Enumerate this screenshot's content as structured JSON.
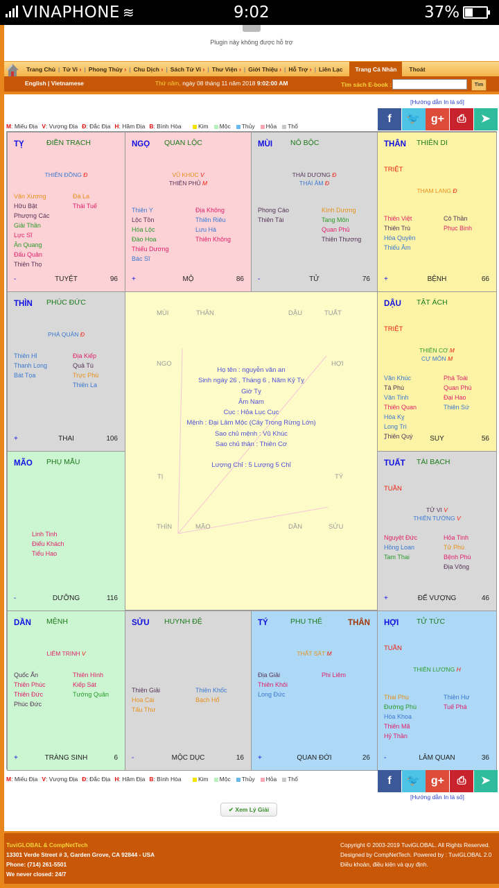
{
  "status_bar": {
    "carrier": "VINAPHONE",
    "time": "9:02",
    "battery": "37%"
  },
  "plugin": {
    "message": "Plugin này không được hỗ trợ"
  },
  "nav": {
    "items": [
      {
        "label": "Trang Chủ",
        "arrow": false
      },
      {
        "label": "Tử Vi",
        "arrow": true
      },
      {
        "label": "Phong Thủy",
        "arrow": true
      },
      {
        "label": "Chu Dịch",
        "arrow": true
      },
      {
        "label": "Sách Tử Vi",
        "arrow": true
      },
      {
        "label": "Thư Viện",
        "arrow": true
      },
      {
        "label": "Giới Thiệu",
        "arrow": true
      },
      {
        "label": "Hỗ Trợ",
        "arrow": true
      },
      {
        "label": "Liên Lạc",
        "arrow": false
      }
    ],
    "active": "Trang Cá Nhân",
    "logout": "Thoát",
    "arrow_glyph": "›"
  },
  "subnav": {
    "lang": "English | Vietnamese",
    "day_name": "Thứ năm,",
    "date": " ngày 08 tháng 11 năm 2018 ",
    "time": "9:02:00 AM",
    "search_label": "Tìm sách E-book :",
    "search_value": "",
    "search_button": "Tìm"
  },
  "guide_link": "[Hướng dẫn In lá số]",
  "legend": {
    "abbrs": [
      {
        "k": "M",
        "v": ": Miếu Địa"
      },
      {
        "k": "V",
        "v": ": Vượng Địa"
      },
      {
        "k": "Đ",
        "v": ": Đắc Địa"
      },
      {
        "k": "H",
        "v": ": Hãm Địa"
      },
      {
        "k": "B",
        "v": ": Bình Hòa"
      }
    ],
    "elements": [
      {
        "name": "Kim",
        "color": "#f5e300"
      },
      {
        "name": "Mộc",
        "color": "#b8f0c0"
      },
      {
        "name": "Thủy",
        "color": "#6ab8f0"
      },
      {
        "name": "Hỏa",
        "color": "#f5a8b4"
      },
      {
        "name": "Thổ",
        "color": "#c8c8c8"
      }
    ]
  },
  "social": [
    {
      "name": "facebook",
      "glyph": "f",
      "color": "#3b5998"
    },
    {
      "name": "twitter",
      "glyph": "🐦",
      "color": "#4fc3e6"
    },
    {
      "name": "google-plus",
      "glyph": "g+",
      "color": "#dd4b39"
    },
    {
      "name": "print",
      "glyph": "⎙",
      "color": "#c8232c"
    },
    {
      "name": "send",
      "glyph": "➤",
      "color": "#2ebc9c"
    }
  ],
  "palaces": [
    {
      "chi": "TỴ",
      "cung": "ĐIỀN TRẠCH",
      "bg": "pink",
      "main": [
        {
          "name": "THIÊN ĐỒNG",
          "q": "Đ",
          "color": "#3a78d0"
        }
      ],
      "tt": "",
      "left": [
        [
          "Văn Xương",
          "#e8901a"
        ],
        [
          "Hữu Bật",
          "#553355"
        ],
        [
          "Phượng Các",
          "#553355"
        ],
        [
          "Giải Thần",
          "#2a9a2a"
        ],
        [
          "Lực Sĩ",
          "#e0206a"
        ],
        [
          "Ân Quang",
          "#2a9a2a"
        ],
        [
          "Đấu Quân",
          "#e0206a"
        ],
        [
          "Thiên Thọ",
          "#553355"
        ]
      ],
      "right": [
        [
          "Đà La",
          "#e8901a"
        ],
        [
          "Thái Tuế",
          "#e0206a"
        ]
      ],
      "sign": "-",
      "ts": "TUYỆT",
      "num": "96"
    },
    {
      "chi": "NGỌ",
      "cung": "QUAN LỘC",
      "bg": "pink",
      "main": [
        {
          "name": "VŨ KHÚC",
          "q": "V",
          "color": "#e8901a"
        },
        {
          "name": "THIÊN PHỦ",
          "q": "M",
          "color": "#553355"
        }
      ],
      "tt": "",
      "left": [
        [
          "Thiên Y",
          "#3a78d0"
        ],
        [
          "Lộc Tồn",
          "#553355"
        ],
        [
          "Hóa Lộc",
          "#2a9a2a"
        ],
        [
          "Đào Hoa",
          "#2a9a2a"
        ],
        [
          "Thiếu Dương",
          "#e0206a"
        ],
        [
          "Bác Sĩ",
          "#3a78d0"
        ]
      ],
      "right": [
        [
          "Địa Không",
          "#e0206a"
        ],
        [
          "Thiên Riêu",
          "#3a78d0"
        ],
        [
          "Lưu Hà",
          "#3a78d0"
        ],
        [
          "Thiên Không",
          "#e0206a"
        ]
      ],
      "sign": "+",
      "ts": "MỘ",
      "num": "86"
    },
    {
      "chi": "MÙI",
      "cung": "NÔ BỘC",
      "bg": "gray",
      "main": [
        {
          "name": "THÁI DƯƠNG",
          "q": "Đ",
          "color": "#553355"
        },
        {
          "name": "THÁI ÂM",
          "q": "Đ",
          "color": "#3a78d0"
        }
      ],
      "tt": "",
      "left": [
        [
          "Phong Cáo",
          "#553355"
        ],
        [
          "Thiên Tài",
          "#553355"
        ]
      ],
      "right": [
        [
          "Kình Dương",
          "#e8901a"
        ],
        [
          "Tang Môn",
          "#2a9a2a"
        ],
        [
          "Quan Phủ",
          "#e0206a"
        ],
        [
          "Thiên Thương",
          "#553355"
        ]
      ],
      "sign": "-",
      "ts": "TỬ",
      "num": "76"
    },
    {
      "chi": "THÂN",
      "cung": "THIÊN DI",
      "bg": "yellow",
      "main": [
        {
          "name": "THAM LANG",
          "q": "Đ",
          "color": "#e8901a"
        }
      ],
      "tt": "TRIỆT",
      "left": [
        [
          "Thiên Việt",
          "#e0206a"
        ],
        [
          "Thiên Trù",
          "#553355"
        ],
        [
          "Hóa Quyền",
          "#3a78d0"
        ],
        [
          "Thiếu Âm",
          "#3a78d0"
        ]
      ],
      "right": [
        [
          "Cô Thần",
          "#553355"
        ],
        [
          "Phục Binh",
          "#e0206a"
        ]
      ],
      "sign": "+",
      "ts": "BỆNH",
      "num": "66"
    },
    {
      "chi": "THÌN",
      "cung": "PHÚC ĐỨC",
      "bg": "gray",
      "main": [
        {
          "name": "PHÁ QUÂN",
          "q": "Đ",
          "color": "#3a78d0"
        }
      ],
      "tt": "",
      "left": [
        [
          "Thiên Hỉ",
          "#3a78d0"
        ],
        [
          "Thanh Long",
          "#3a78d0"
        ],
        [
          "Bát Tọa",
          "#3a78d0"
        ]
      ],
      "right": [
        [
          "Địa Kiếp",
          "#e0206a"
        ],
        [
          "Quả Tú",
          "#553355"
        ],
        [
          "Trực Phù",
          "#e8901a"
        ],
        [
          "Thiên La",
          "#3a78d0"
        ]
      ],
      "sign": "+",
      "ts": "THAI",
      "num": "106"
    },
    {
      "chi": "DẬU",
      "cung": "TẬT ÁCH",
      "bg": "yellow",
      "main": [
        {
          "name": "THIÊN CƠ",
          "q": "M",
          "color": "#2a9a2a"
        },
        {
          "name": "CỰ MÔN",
          "q": "M",
          "color": "#3a78d0"
        }
      ],
      "tt": "TRIỆT",
      "left": [
        [
          "Văn Khúc",
          "#3a78d0"
        ],
        [
          "Tả Phù",
          "#553355"
        ],
        [
          "Văn Tinh",
          "#3a78d0"
        ],
        [
          "Thiên Quan",
          "#e0206a"
        ],
        [
          "Hóa Kỵ",
          "#3a78d0"
        ],
        [
          "Long Trì",
          "#3a78d0"
        ],
        [
          "Thiên Quý",
          "#553355"
        ]
      ],
      "right": [
        [
          "Phá Toái",
          "#e0206a"
        ],
        [
          "Quan Phù",
          "#e0206a"
        ],
        [
          "Đại Hao",
          "#e0206a"
        ],
        [
          "Thiên Sứ",
          "#3a78d0"
        ]
      ],
      "sign": "-",
      "ts": "SUY",
      "num": "56"
    },
    {
      "chi": "MÃO",
      "cung": "PHỤ MẪU",
      "bg": "green",
      "main": [],
      "tt": "",
      "left": [
        [
          "Linh Tinh",
          "#e0206a"
        ],
        [
          "Điếu Khách",
          "#e0206a"
        ],
        [
          "Tiểu Hao",
          "#e0206a"
        ]
      ],
      "right": [],
      "sign": "-",
      "ts": "DƯỠNG",
      "num": "116"
    },
    {
      "chi": "TUẤT",
      "cung": "TÀI BẠCH",
      "bg": "gray",
      "main": [
        {
          "name": "TỬ VI",
          "q": "V",
          "color": "#553355"
        },
        {
          "name": "THIÊN TƯỚNG",
          "q": "V",
          "color": "#3a78d0"
        }
      ],
      "tt": "TUẦN",
      "left": [
        [
          "Nguyệt Đức",
          "#e0206a"
        ],
        [
          "Hồng Loan",
          "#3a78d0"
        ],
        [
          "Tam Thai",
          "#2a9a2a"
        ]
      ],
      "right": [
        [
          "Hỏa Tinh",
          "#e0206a"
        ],
        [
          "Tử Phù",
          "#e8901a"
        ],
        [
          "Bệnh Phù",
          "#e0206a"
        ],
        [
          "Địa Võng",
          "#553355"
        ]
      ],
      "sign": "+",
      "ts": "ĐẾ VƯỢNG",
      "num": "46"
    },
    {
      "chi": "DẦN",
      "cung": "MỆNH",
      "bg": "green",
      "main": [
        {
          "name": "LIÊM TRINH",
          "q": "V",
          "color": "#e0206a"
        }
      ],
      "tt": "",
      "left": [
        [
          "Quốc Ấn",
          "#553355"
        ],
        [
          "Thiên Phúc",
          "#e0206a"
        ],
        [
          "Thiên Đức",
          "#e0206a"
        ],
        [
          "Phúc Đức",
          "#553355"
        ]
      ],
      "right": [
        [
          "Thiên Hình",
          "#e0206a"
        ],
        [
          "Kiếp Sát",
          "#e0206a"
        ],
        [
          "Tướng Quân",
          "#2a9a2a"
        ]
      ],
      "sign": "+",
      "ts": "TRÀNG SINH",
      "num": "6"
    },
    {
      "chi": "SỬU",
      "cung": "HUYNH ĐỆ",
      "bg": "gray",
      "main": [],
      "tt": "",
      "left": [
        [
          "Thiên Giải",
          "#553355"
        ],
        [
          "Hoa Cái",
          "#e8901a"
        ],
        [
          "Tấu Thư",
          "#e8901a"
        ]
      ],
      "right": [
        [
          "Thiên Khốc",
          "#3a78d0"
        ],
        [
          "Bạch Hổ",
          "#e8901a"
        ]
      ],
      "sign": "-",
      "ts": "MỘC DỤC",
      "num": "16"
    },
    {
      "chi": "TÝ",
      "cung": "PHU THÊ",
      "than": "THÂN",
      "bg": "blue",
      "main": [
        {
          "name": "THẤT SÁT",
          "q": "M",
          "color": "#e8901a"
        }
      ],
      "tt": "",
      "left": [
        [
          "Địa Giải",
          "#553355"
        ],
        [
          "Thiên Khôi",
          "#e0206a"
        ],
        [
          "Long Đức",
          "#3a78d0"
        ]
      ],
      "right": [
        [
          "Phi Liêm",
          "#e0206a"
        ]
      ],
      "sign": "+",
      "ts": "QUAN ĐỚI",
      "num": "26"
    },
    {
      "chi": "HỢI",
      "cung": "TỬ TỨC",
      "bg": "blue",
      "main": [
        {
          "name": "THIÊN LƯƠNG",
          "q": "H",
          "color": "#2a9a2a"
        }
      ],
      "tt": "TUẦN",
      "left": [
        [
          "Thai Phụ",
          "#e8901a"
        ],
        [
          "Đường Phù",
          "#2a9a2a"
        ],
        [
          "Hóa Khoa",
          "#3a78d0"
        ],
        [
          "Thiên Mã",
          "#e0206a"
        ],
        [
          "Hỷ Thần",
          "#e0206a"
        ]
      ],
      "right": [
        [
          "Thiên Hư",
          "#3a78d0"
        ],
        [
          "Tuế Phá",
          "#e0206a"
        ]
      ],
      "sign": "-",
      "ts": "LÂM QUAN",
      "num": "36"
    }
  ],
  "center": {
    "labels": {
      "mui": "MÙI",
      "than": "THÂN",
      "dau": "DẬU",
      "tuat": "TUẤT",
      "ngo": "NGỌ",
      "hoi": "HỢI",
      "ti": "TỊ",
      "ty": "TÝ",
      "thin": "THÌN",
      "mao": "MÃO",
      "dan": "DẦN",
      "suu": "SỬU"
    },
    "info": [
      "Họ tên : nguyễn văn an",
      "Sinh ngày 26 , Tháng 6 , Năm Kỷ Tỵ",
      "Giờ Tỵ",
      "Âm Nam",
      "Cục : Hỏa Lục Cục",
      "Mệnh : Đại Lâm Mộc (Cây Trong Rừng Lớn)",
      "Sao chủ mệnh : Vũ Khúc",
      "Sao chủ thân : Thiên Cơ",
      "",
      "Lượng Chỉ : 5 Lượng 5 Chỉ"
    ]
  },
  "xem_button": "Xem Lý Giải",
  "footer": {
    "brand": "TuviGLOBAL & CompNetTech",
    "address": "13301 Verde Street # 3, Garden Grove, CA 92844 - USA",
    "phone": "Phone: (714) 261-5501",
    "hours": "We never closed: 24/7",
    "copyright": "Copyright © 2003-2019 TuviGLOBAL. All Rights Reserved.",
    "designed": "Designed by CompNetTech. Powered by : TuviGLOBAL 2.0",
    "terms": "Điều khoản, điều kiện và quy định."
  }
}
